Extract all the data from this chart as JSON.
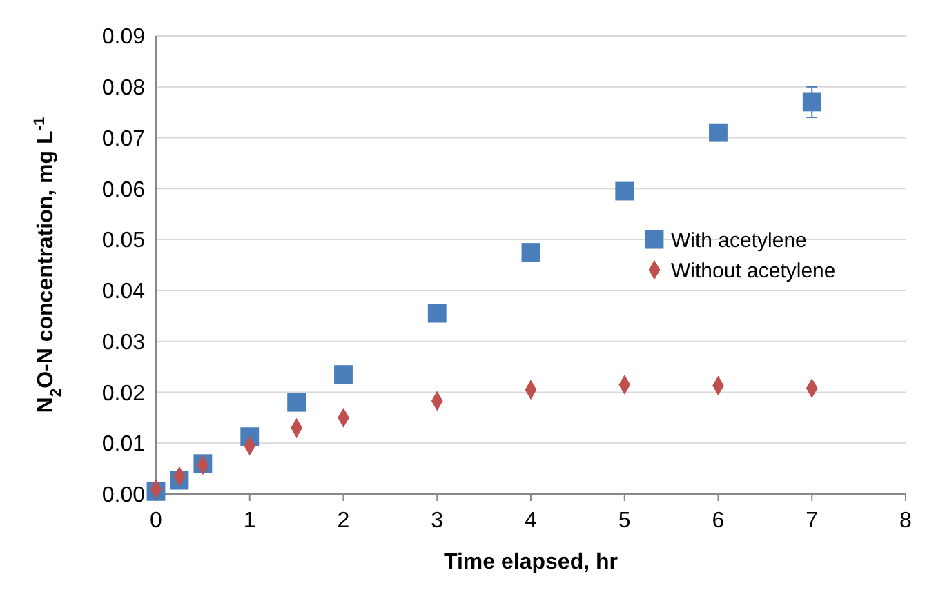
{
  "chart_data": {
    "type": "scatter",
    "xlabel": "Time elapsed, hr",
    "ylabel": "N$_{2}$O-N concentration, mg L$^{-1}$",
    "xlim": [
      0,
      8
    ],
    "xticks": [
      0,
      1,
      2,
      3,
      4,
      5,
      6,
      7,
      8
    ],
    "ylim": [
      0,
      0.09
    ],
    "yticks": [
      {
        "value": 0,
        "label": "0.00"
      },
      {
        "value": 0.01,
        "label": "0.01"
      },
      {
        "value": 0.02,
        "label": "0.02"
      },
      {
        "value": 0.03,
        "label": "0.03"
      },
      {
        "value": 0.04,
        "label": "0.04"
      },
      {
        "value": 0.05,
        "label": "0.05"
      },
      {
        "value": 0.06,
        "label": "0.06"
      },
      {
        "value": 0.07,
        "label": "0.07"
      },
      {
        "value": 0.08,
        "label": "0.08"
      },
      {
        "value": 0.09,
        "label": "0.09"
      }
    ],
    "grid": "y",
    "legend": "right",
    "x": [
      0,
      0.25,
      0.5,
      1,
      1.5,
      2,
      3,
      4,
      5,
      6,
      7
    ],
    "series": [
      {
        "name": "With acetylene",
        "color": "#4a7ebb",
        "marker": "square",
        "values": [
          0.0005,
          0.0027,
          0.006,
          0.0113,
          0.018,
          0.0235,
          0.0355,
          0.0475,
          0.0595,
          0.071,
          0.077
        ],
        "errors": [
          null,
          null,
          null,
          null,
          null,
          null,
          null,
          null,
          null,
          null,
          0.003
        ]
      },
      {
        "name": "Without acetylene",
        "color": "#c0504d",
        "marker": "diamond",
        "values": [
          0.001,
          0.0035,
          0.0057,
          0.0095,
          0.013,
          0.015,
          0.0183,
          0.0205,
          0.0215,
          0.0213,
          0.0208
        ]
      }
    ]
  }
}
